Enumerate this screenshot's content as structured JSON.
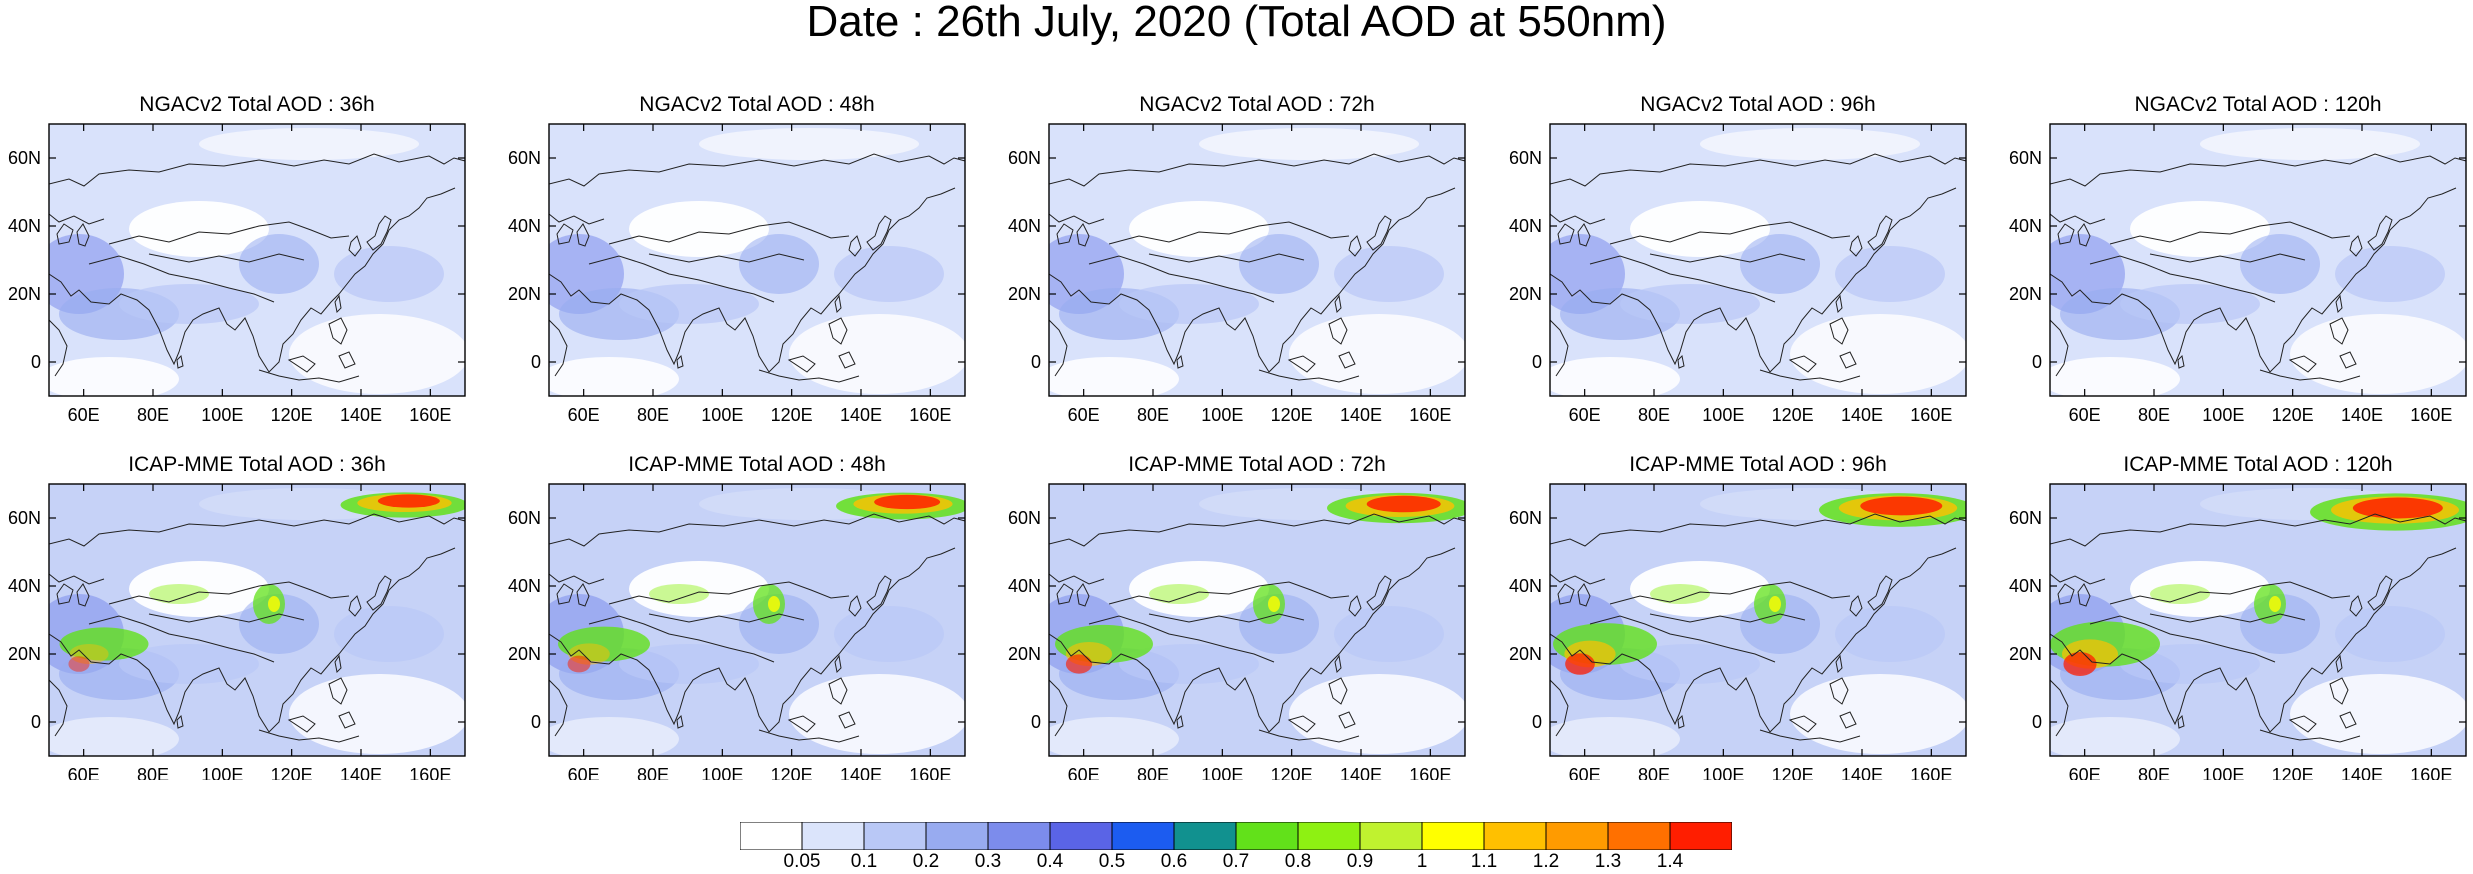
{
  "title": "Date : 26th July, 2020 (Total AOD at 550nm)",
  "map": {
    "projection": "cylindrical-equidistant",
    "lon_range": [
      50,
      170
    ],
    "lat_range": [
      -10,
      70
    ],
    "x_ticks": [
      {
        "value": 60,
        "label": "60E"
      },
      {
        "value": 80,
        "label": "80E"
      },
      {
        "value": 100,
        "label": "100E"
      },
      {
        "value": 120,
        "label": "120E"
      },
      {
        "value": 140,
        "label": "140E"
      },
      {
        "value": 160,
        "label": "160E"
      }
    ],
    "y_ticks": [
      {
        "value": 60,
        "label": "60N"
      },
      {
        "value": 40,
        "label": "40N"
      },
      {
        "value": 20,
        "label": "20N"
      },
      {
        "value": 0,
        "label": "0"
      }
    ]
  },
  "panels": [
    {
      "title": "NGACv2 Total AOD : 36h",
      "model": "NGACv2",
      "lead_hours": 36
    },
    {
      "title": "NGACv2 Total AOD : 48h",
      "model": "NGACv2",
      "lead_hours": 48
    },
    {
      "title": "NGACv2 Total AOD : 72h",
      "model": "NGACv2",
      "lead_hours": 72
    },
    {
      "title": "NGACv2 Total AOD : 96h",
      "model": "NGACv2",
      "lead_hours": 96
    },
    {
      "title": "NGACv2 Total AOD : 120h",
      "model": "NGACv2",
      "lead_hours": 120
    },
    {
      "title": "ICAP-MME Total AOD : 36h",
      "model": "ICAP-MME",
      "lead_hours": 36
    },
    {
      "title": "ICAP-MME Total AOD : 48h",
      "model": "ICAP-MME",
      "lead_hours": 48
    },
    {
      "title": "ICAP-MME Total AOD : 72h",
      "model": "ICAP-MME",
      "lead_hours": 72
    },
    {
      "title": "ICAP-MME Total AOD : 96h",
      "model": "ICAP-MME",
      "lead_hours": 96
    },
    {
      "title": "ICAP-MME Total AOD : 120h",
      "model": "ICAP-MME",
      "lead_hours": 120
    }
  ],
  "colorbar": {
    "labels": [
      "0.05",
      "0.1",
      "0.2",
      "0.3",
      "0.4",
      "0.5",
      "0.6",
      "0.7",
      "0.8",
      "0.9",
      "1",
      "1.1",
      "1.2",
      "1.3",
      "1.4"
    ],
    "colors": [
      "#ffffff",
      "#dbe4fb",
      "#b9c8f6",
      "#98abf0",
      "#7c8cec",
      "#5a64e6",
      "#1c5cf0",
      "#11918f",
      "#62e11a",
      "#8ef112",
      "#c0f22f",
      "#ffff00",
      "#ffc000",
      "#ff9b00",
      "#ff7000",
      "#ff1e00"
    ]
  }
}
